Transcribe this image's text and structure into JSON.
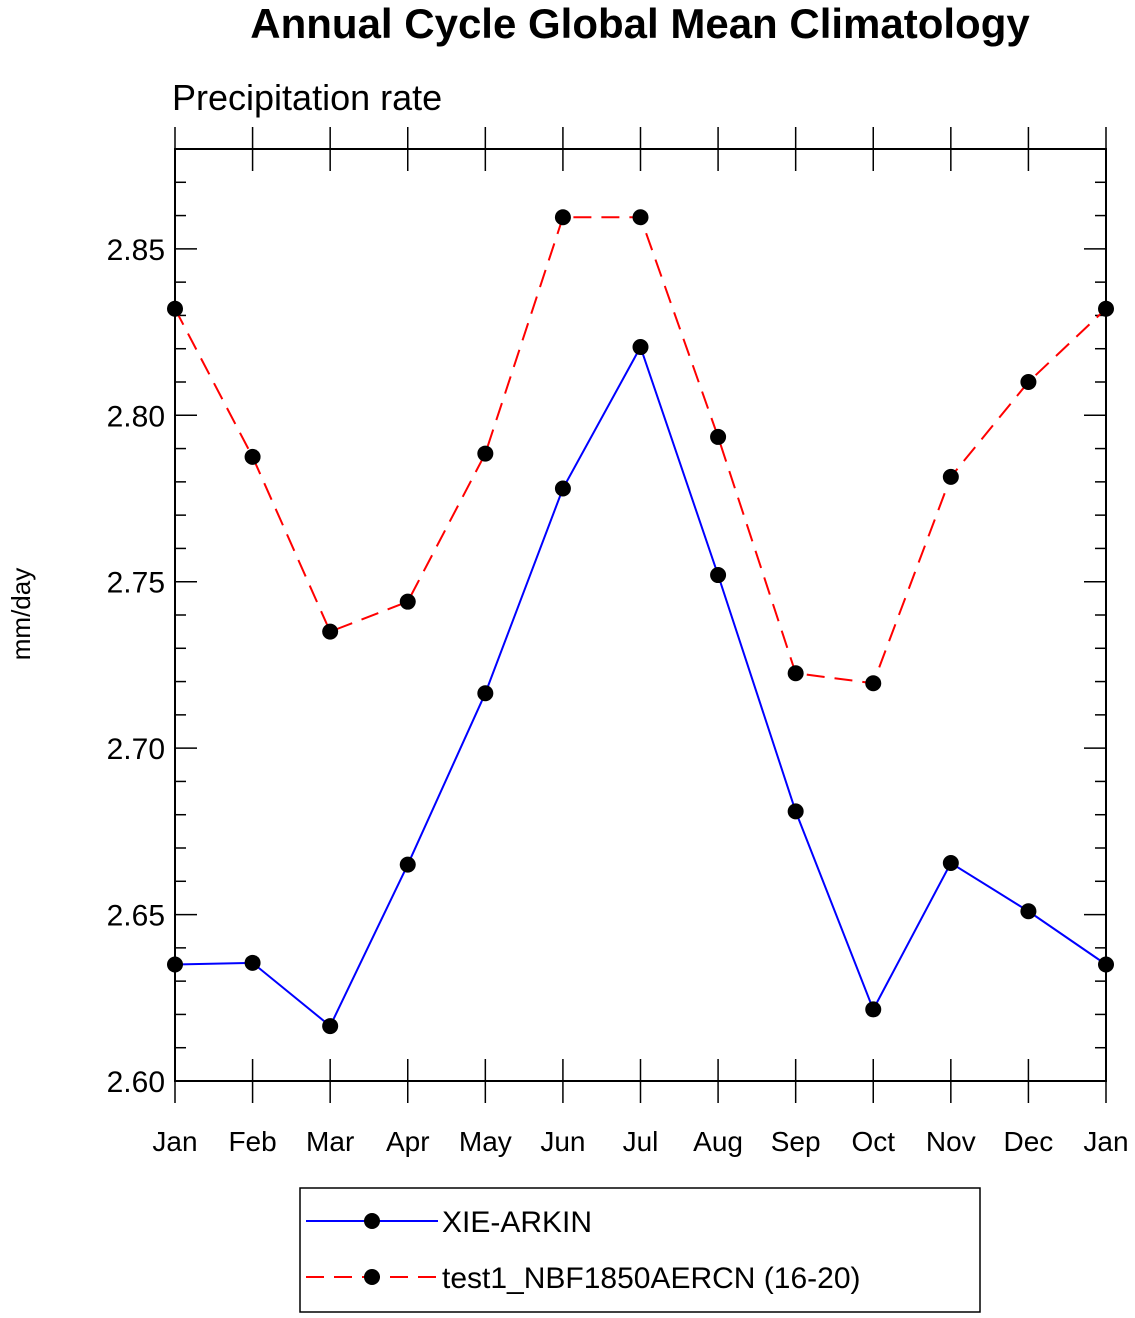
{
  "chart_data": {
    "type": "line",
    "title": "Annual Cycle Global Mean Climatology",
    "subtitle": "Precipitation rate",
    "xlabel": "",
    "ylabel": "mm/day",
    "categories": [
      "Jan",
      "Feb",
      "Mar",
      "Apr",
      "May",
      "Jun",
      "Jul",
      "Aug",
      "Sep",
      "Oct",
      "Nov",
      "Dec",
      "Jan"
    ],
    "ylim": [
      2.6,
      2.88
    ],
    "yticks": [
      "2.60",
      "2.65",
      "2.70",
      "2.75",
      "2.80",
      "2.85"
    ],
    "ytick_values": [
      2.6,
      2.65,
      2.7,
      2.75,
      2.8,
      2.85
    ],
    "grid": false,
    "legend_position": "bottom-center",
    "series": [
      {
        "name": "XIE-ARKIN",
        "color": "#0000ff",
        "line_style": "solid",
        "marker": "filled-circle",
        "values": [
          2.635,
          2.6355,
          2.6165,
          2.665,
          2.7165,
          2.778,
          2.8205,
          2.752,
          2.681,
          2.6215,
          2.6655,
          2.651,
          2.635
        ]
      },
      {
        "name": "test1_NBF1850AERCN (16-20)",
        "color": "#ff0000",
        "line_style": "dashed",
        "marker": "filled-circle",
        "values": [
          2.832,
          2.7875,
          2.735,
          2.744,
          2.7885,
          2.8595,
          2.8595,
          2.7935,
          2.7225,
          2.7195,
          2.7815,
          2.81,
          2.832
        ]
      }
    ]
  }
}
